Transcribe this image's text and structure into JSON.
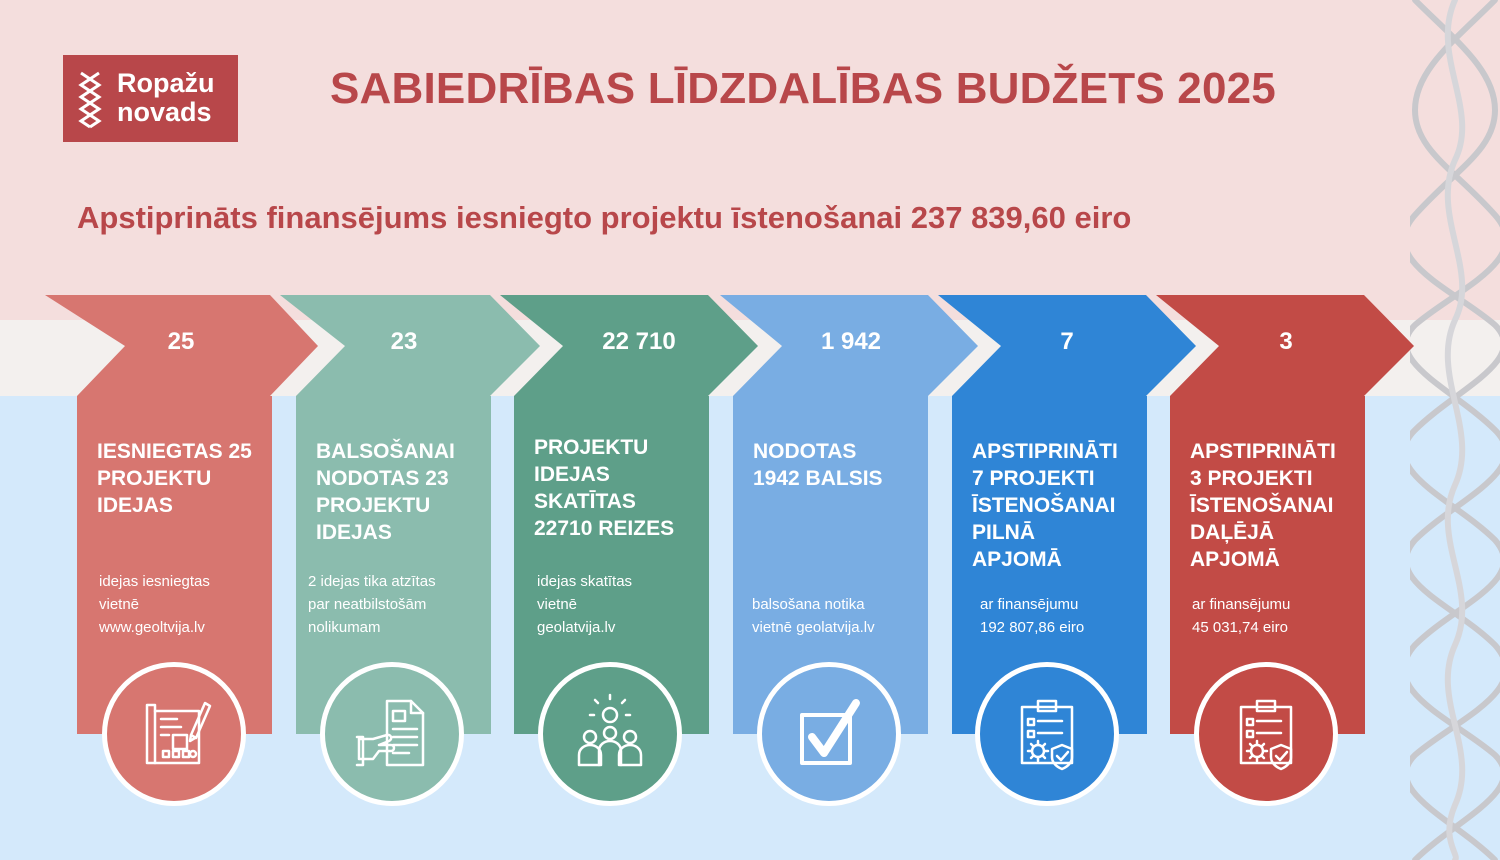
{
  "header": {
    "logo_line1": "Ropažu",
    "logo_line2": "novads",
    "title": "SABIEDRĪBAS LĪDZDALĪBAS BUDŽETS 2025",
    "subtitle": "Apstiprināts finansējums iesniegto projektu īstenošanai 237 839,60 eiro"
  },
  "colors": {
    "red": "#d77670",
    "teal_light": "#8bbcae",
    "teal": "#5e9f89",
    "blue_light": "#79ade3",
    "blue": "#2f85d6",
    "brand_red": "#c24b46"
  },
  "steps": [
    {
      "number": "25",
      "heading": [
        "IESNIEGTAS 25",
        "PROJEKTU",
        "IDEJAS"
      ],
      "desc": [
        "idejas iesniegtas",
        "vietnē",
        "www.geoltvija.lv"
      ],
      "icon": "blueprint-drawing-icon"
    },
    {
      "number": "23",
      "heading": [
        "BALSOŠANAI",
        "NODOTAS 23",
        "PROJEKTU",
        "IDEJAS"
      ],
      "desc": [
        "2 idejas tika atzītas",
        "par neatbilstošām",
        "nolikumam"
      ],
      "icon": "hand-document-icon"
    },
    {
      "number": "22 710",
      "heading": [
        "PROJEKTU",
        "IDEJAS",
        "SKATĪTAS",
        "22710 REIZES"
      ],
      "desc": [
        "idejas skatītas",
        "vietnē",
        "geolatvija.lv"
      ],
      "icon": "people-idea-icon"
    },
    {
      "number": "1 942",
      "heading": [
        "NODOTAS",
        "1942 BALSIS"
      ],
      "desc": [
        "balsošana notika",
        "vietnē geolatvija.lv"
      ],
      "icon": "checkbox-icon"
    },
    {
      "number": "7",
      "heading": [
        "APSTIPRINĀTI",
        "7 PROJEKTI",
        "ĪSTENOŠANAI",
        "PILNĀ",
        "APJOMĀ"
      ],
      "desc": [
        "ar finansējumu",
        "192 807,86 eiro"
      ],
      "icon": "clipboard-gear-icon"
    },
    {
      "number": "3",
      "heading": [
        "APSTIPRINĀTI",
        "3 PROJEKTI",
        "ĪSTENOŠANAI",
        "DAĻĒJĀ",
        "APJOMĀ"
      ],
      "desc": [
        "ar finansējumu",
        "45 031,74 eiro"
      ],
      "icon": "clipboard-gear-icon"
    }
  ]
}
